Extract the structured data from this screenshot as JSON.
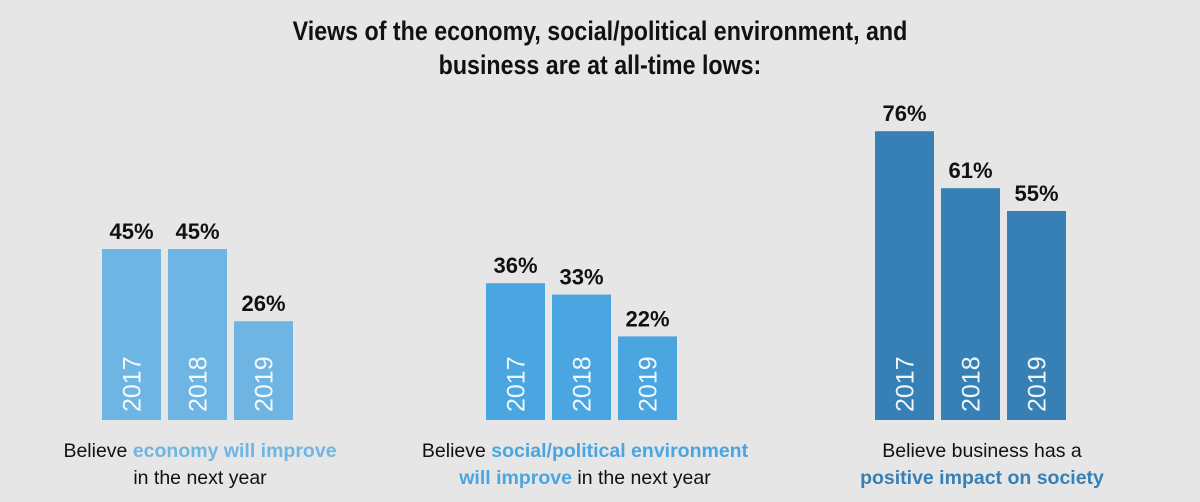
{
  "title": {
    "line1": "Views of the economy, social/political environment, and",
    "line2": "business are at all-time lows:"
  },
  "chart_data": [
    {
      "type": "bar",
      "categories": [
        "2017",
        "2018",
        "2019"
      ],
      "values": [
        45,
        45,
        26
      ],
      "value_labels": [
        "45%",
        "45%",
        "26%"
      ],
      "unit": "%",
      "color": "#6fb5e3",
      "caption": {
        "prefix": "Believe ",
        "highlight": "economy will improve",
        "suffix": "in the next year"
      }
    },
    {
      "type": "bar",
      "categories": [
        "2017",
        "2018",
        "2019"
      ],
      "values": [
        36,
        33,
        22
      ],
      "value_labels": [
        "36%",
        "33%",
        "22%"
      ],
      "unit": "%",
      "color": "#4ba5e0",
      "caption": {
        "prefix": "Believe ",
        "highlight": "social/political environment",
        "highlight2": "will improve",
        "suffix": " in the next year"
      }
    },
    {
      "type": "bar",
      "categories": [
        "2017",
        "2018",
        "2019"
      ],
      "values": [
        76,
        61,
        55
      ],
      "value_labels": [
        "76%",
        "61%",
        "55%"
      ],
      "unit": "%",
      "color": "#3780b5",
      "caption": {
        "prefix": "Believe business has a",
        "highlight": "positive impact on society"
      }
    }
  ],
  "colors": {
    "background": "#e6e6e6",
    "highlight_light": "#6fb5e3",
    "highlight_mid": "#4ba5e0",
    "highlight_dark": "#3780b5"
  }
}
